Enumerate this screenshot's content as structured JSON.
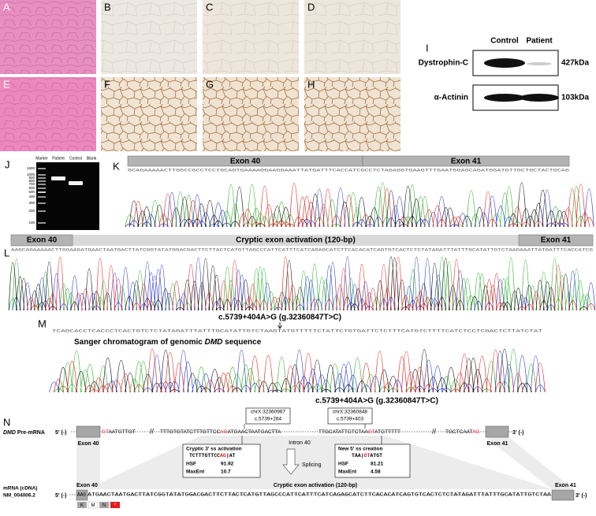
{
  "histology": {
    "labels": [
      "A",
      "B",
      "C",
      "D",
      "E",
      "F",
      "G",
      "H"
    ]
  },
  "western_blot": {
    "label": "I",
    "lanes": [
      "Control",
      "Patient"
    ],
    "proteins": [
      {
        "name": "Dystrophin-C",
        "size": "427kDa"
      },
      {
        "name": "α-Actinin",
        "size": "103kDa"
      }
    ]
  },
  "gel": {
    "label": "J",
    "lanes": [
      "Marker",
      "Patient",
      "Control",
      "Blank"
    ],
    "ladder": [
      "1500",
      "1000",
      "900",
      "800",
      "700",
      "600",
      "500",
      "400",
      "300",
      "200",
      "100"
    ]
  },
  "chromatogram_k": {
    "label": "K",
    "exons": [
      "Exon 40",
      "Exon 41"
    ],
    "sequence": "GCAGAAAAACTTGGCCGCCTCCTGCAGTGAAAAGGAAGGAAATTATGATTTCACCATCGCCTCTAGAGGTGAAGTTTGAATGGAGCAGATGGATGTTGCTGCTACTGCAG"
  },
  "chromatogram_l": {
    "label": "L",
    "left_exon": "Exon 40",
    "middle": "Cryptic exon activation (120-bp)",
    "right_exon": "Exon 41",
    "sequence": "AAGCAGAAAAACTTGGAAGATGAACTAATGACTTATCGGTATATGGACGACTTCTTACTCATGTTAGCCCATTCATTTCATCAGAGCATCTTCACACATCAGTGTCACTCTCTATAGATTTATTTGCATATTGTCTAAGAAATTATGATTTCACCATCG"
  },
  "chromatogram_m": {
    "label": "M",
    "variant": "c.5739+404A>G (g.32360847T>C)",
    "caption": [
      "Sanger chromatogram of genomic ",
      "DMD",
      " sequence"
    ],
    "sequence": "TCAGCACCTCACCCTCACTGTCTCTATAGATTTATTTGCATATTGTCTAAGTATGTTTTTCTATTCTGTGATTCTCTTTCATGTCTTTTCATCTCCTCGACTCTTATCTAT"
  },
  "splicing_diagram": {
    "label": "N",
    "variant": "c.5739+404A>G (g.32360847T>C)",
    "pre_mrna": {
      "gene": "DMD",
      "label": " Pre-mRNA",
      "five": "5' (-)",
      "three": "3' (-)",
      "exon_left": "Exon 40",
      "intron": "Intron 40",
      "exon_right": "Exon 41",
      "seq_a": [
        "GT",
        "AATGTTGT"
      ],
      "seq_b": [
        "TTTGTGTATCTTTGTTCC",
        "AG",
        "ATGAACTAATGACTTA"
      ],
      "seq_c": [
        "TTGCATATTGTCTAA",
        "GT",
        "ATGTTTTT"
      ],
      "seq_d": [
        "TGCTCAAT",
        "AG"
      ]
    },
    "box_left": [
      "chrX:32360967",
      "c.5739+284"
    ],
    "box_right": [
      "chrX:32360848",
      "c.5739+403"
    ],
    "acceptor": {
      "title": "Cryptic 3' ss activation",
      "seq": [
        "TCTTTGTTCC",
        "AG",
        "|AT"
      ],
      "rows": [
        [
          "HSF",
          "91.92"
        ],
        [
          "MaxEnt",
          "10.7"
        ]
      ]
    },
    "donor": {
      "title": "New 5' ss creation",
      "seq": [
        "TAA|",
        "GT",
        "ATGT"
      ],
      "rows": [
        [
          "HSF",
          "81.21"
        ],
        [
          "MaxEnt",
          "4.58"
        ]
      ]
    },
    "splicing": "Splicing",
    "mrna": {
      "label": [
        "mRNA (cDNA)",
        "NM_004006.2"
      ],
      "five": "5' (-)",
      "three": "3' (-)",
      "exon_left": "Exon 40",
      "middle": "Cryptic exon activation (120-bp)",
      "exon_right": "Exon 41",
      "sequence": [
        "AAG",
        "ATGAACTAATGACTTATCGGTATATGGACGACTTCTTACTCATGTTAGCCCATTCATTTCATCAGAGCATCTTCACACATCAGTGTCACTCTCTATAGATTTATTTGCATATTGTCTAA"
      ],
      "amino_acids": [
        "K",
        "M",
        "N",
        "*"
      ]
    }
  }
}
